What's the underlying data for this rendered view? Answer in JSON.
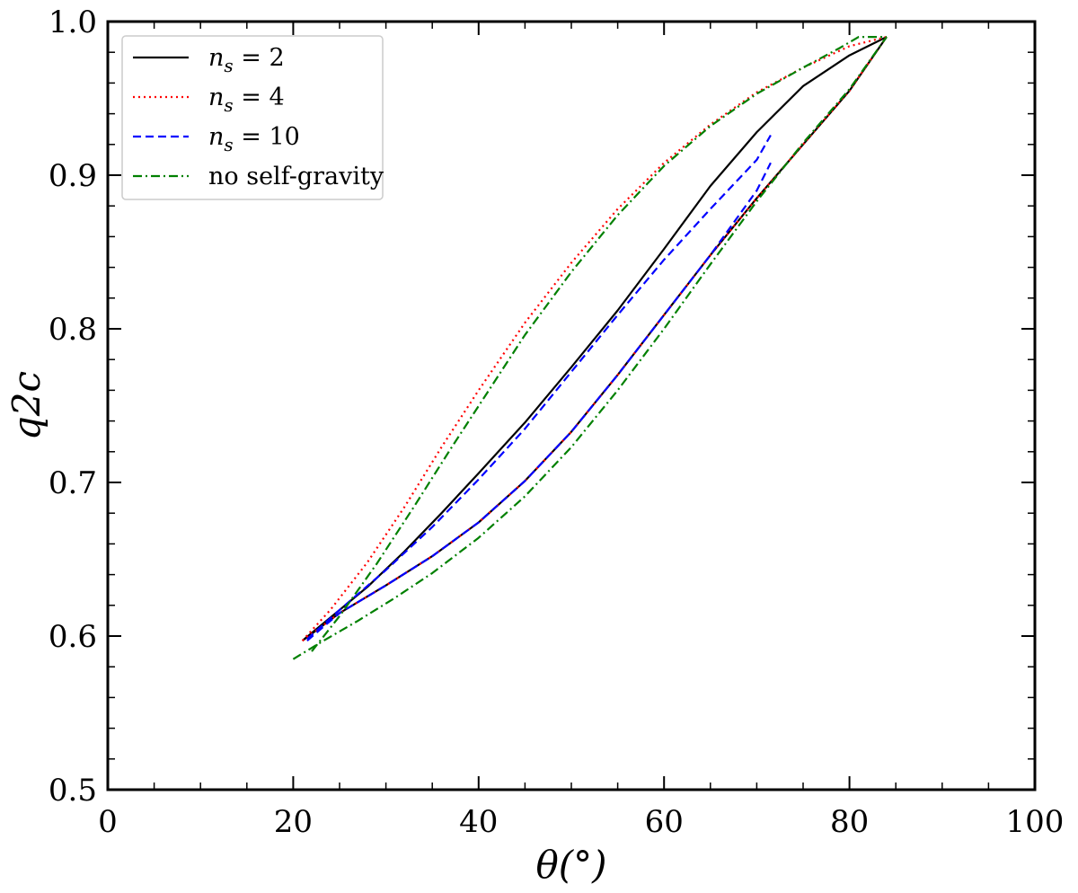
{
  "chart_data": {
    "type": "line",
    "xlabel": "θ(°)",
    "ylabel": "q2c",
    "xlim": [
      0,
      100
    ],
    "ylim": [
      0.5,
      1.0
    ],
    "x_ticks": [
      0,
      20,
      40,
      60,
      80,
      100
    ],
    "y_ticks": [
      0.5,
      0.6,
      0.7,
      0.8,
      0.9,
      1.0
    ],
    "x_tick_labels": [
      "0",
      "20",
      "40",
      "60",
      "80",
      "100"
    ],
    "y_tick_labels": [
      "0.5",
      "0.6",
      "0.7",
      "0.8",
      "0.9",
      "1.0"
    ],
    "grid": false,
    "legend_position": "top-left",
    "series": [
      {
        "name": "n_s = 2",
        "legend_base": "n",
        "legend_sub": "s",
        "legend_rest": " = 2",
        "color": "#000000",
        "dash": "solid",
        "branches": [
          {
            "x": [
              21,
              24,
              28,
              32,
              36,
              40,
              45,
              50,
              55,
              60,
              65,
              70,
              75,
              80,
              84
            ],
            "y": [
              0.597,
              0.612,
              0.632,
              0.655,
              0.68,
              0.706,
              0.739,
              0.775,
              0.812,
              0.852,
              0.893,
              0.928,
              0.958,
              0.978,
              0.99
            ]
          },
          {
            "x": [
              21,
              25,
              30,
              35,
              40,
              45,
              50,
              55,
              60,
              65,
              70,
              75,
              80,
              84
            ],
            "y": [
              0.597,
              0.615,
              0.633,
              0.652,
              0.674,
              0.701,
              0.733,
              0.77,
              0.809,
              0.848,
              0.885,
              0.92,
              0.955,
              0.99
            ]
          }
        ]
      },
      {
        "name": "n_s = 4",
        "legend_base": "n",
        "legend_sub": "s",
        "legend_rest": " = 4",
        "color": "#ff0000",
        "dash": "dotted",
        "branches": [
          {
            "x": [
              21,
              24,
              28,
              32,
              36,
              40,
              45,
              50,
              55,
              60,
              65,
              70,
              75,
              80,
              84
            ],
            "y": [
              0.597,
              0.617,
              0.648,
              0.684,
              0.723,
              0.76,
              0.804,
              0.843,
              0.878,
              0.908,
              0.933,
              0.954,
              0.97,
              0.984,
              0.99
            ]
          },
          {
            "x": [
              21,
              25,
              30,
              35,
              40,
              45,
              50,
              55,
              60,
              65,
              70,
              75,
              80,
              84
            ],
            "y": [
              0.597,
              0.615,
              0.633,
              0.652,
              0.674,
              0.701,
              0.733,
              0.77,
              0.809,
              0.848,
              0.885,
              0.92,
              0.955,
              0.99
            ]
          }
        ]
      },
      {
        "name": "n_s = 10",
        "legend_base": "n",
        "legend_sub": "s",
        "legend_rest": " = 10",
        "color": "#0000ff",
        "dash": "dashed",
        "branches": [
          {
            "x": [
              21.5,
              25,
              30,
              35,
              40,
              45,
              50,
              55,
              60,
              65,
              70,
              71.5
            ],
            "y": [
              0.598,
              0.617,
              0.643,
              0.671,
              0.702,
              0.735,
              0.772,
              0.809,
              0.845,
              0.878,
              0.91,
              0.926
            ]
          },
          {
            "x": [
              21.5,
              25,
              30,
              35,
              40,
              45,
              50,
              55,
              60,
              65,
              70,
              71.5
            ],
            "y": [
              0.597,
              0.615,
              0.633,
              0.652,
              0.674,
              0.701,
              0.733,
              0.77,
              0.809,
              0.848,
              0.89,
              0.908
            ]
          }
        ]
      },
      {
        "name": "no self-gravity",
        "legend_base": "no self-gravity",
        "legend_sub": "",
        "legend_rest": "",
        "color": "#008000",
        "dash": "dashdot",
        "branches": [
          {
            "x": [
              22,
              25,
              29,
              33,
              37,
              41,
              45,
              50,
              55,
              60,
              65,
              70,
              75,
              79,
              81,
              83,
              84
            ],
            "y": [
              0.59,
              0.613,
              0.647,
              0.684,
              0.722,
              0.759,
              0.796,
              0.837,
              0.874,
              0.906,
              0.932,
              0.953,
              0.97,
              0.983,
              0.99,
              0.99,
              0.99
            ]
          },
          {
            "x": [
              20,
              23,
              27,
              31,
              35,
              40,
              45,
              50,
              55,
              60,
              65,
              70,
              75,
              80,
              84
            ],
            "y": [
              0.585,
              0.596,
              0.61,
              0.625,
              0.641,
              0.664,
              0.691,
              0.723,
              0.76,
              0.8,
              0.842,
              0.883,
              0.921,
              0.956,
              0.99
            ]
          }
        ]
      }
    ]
  }
}
